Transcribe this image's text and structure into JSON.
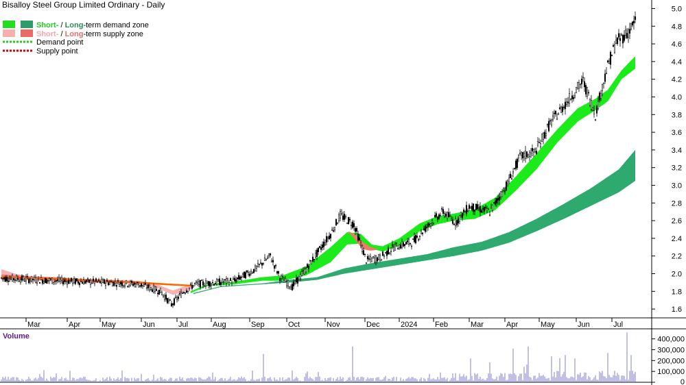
{
  "chart_data": {
    "type": "candlestick",
    "title": "Bisalloy Steel Group Limited Ordinary - Daily",
    "legend": {
      "demand_zone": {
        "short": "Short-",
        "sep": " / ",
        "long": "Long",
        "rest": "-term demand zone"
      },
      "supply_zone": {
        "short": "Short-",
        "sep": " / ",
        "long": "Long",
        "rest": "-term supply zone"
      },
      "demand_point": "Demand point",
      "supply_point": "Supply point"
    },
    "legend_placement": "top-left",
    "price_axis": {
      "ticks": [
        "1.6",
        "1.8",
        "2.0",
        "2.2",
        "2.4",
        "2.6",
        "2.8",
        "3.0",
        "3.2",
        "3.4",
        "3.6",
        "3.8",
        "4.0",
        "4.2",
        "4.4",
        "4.6",
        "4.8",
        "5.0"
      ],
      "range": [
        1.5,
        5.05
      ]
    },
    "volume_axis": {
      "label": "Volume",
      "ticks": [
        "0",
        "100,000",
        "200,000",
        "300,000",
        "400,000"
      ],
      "range": [
        0,
        480000
      ]
    },
    "x_axis": {
      "labels": [
        "Mar",
        "Apr",
        "May",
        "Jun",
        "Jul",
        "Aug",
        "Sep",
        "Oct",
        "Nov",
        "Dec",
        "2024",
        "Feb",
        "Mar",
        "Apr",
        "May",
        "Jun",
        "Jul"
      ]
    },
    "grid": false,
    "price_keypoints": [
      [
        0,
        1.95
      ],
      [
        40,
        1.92
      ],
      [
        80,
        1.9
      ],
      [
        100,
        1.88
      ],
      [
        116,
        1.8
      ],
      [
        124,
        1.65
      ],
      [
        133,
        1.8
      ],
      [
        141,
        1.88
      ],
      [
        170,
        1.92
      ],
      [
        185,
        2.05
      ],
      [
        196,
        2.2
      ],
      [
        203,
        1.96
      ],
      [
        212,
        1.85
      ],
      [
        222,
        2.05
      ],
      [
        240,
        2.45
      ],
      [
        247,
        2.66
      ],
      [
        257,
        2.56
      ],
      [
        266,
        2.15
      ],
      [
        276,
        2.18
      ],
      [
        286,
        2.3
      ],
      [
        300,
        2.36
      ],
      [
        313,
        2.58
      ],
      [
        322,
        2.7
      ],
      [
        331,
        2.58
      ],
      [
        341,
        2.76
      ],
      [
        356,
        2.7
      ],
      [
        369,
        3.02
      ],
      [
        378,
        3.32
      ],
      [
        389,
        3.38
      ],
      [
        400,
        3.7
      ],
      [
        415,
        4.0
      ],
      [
        424,
        4.18
      ],
      [
        433,
        3.8
      ],
      [
        441,
        4.3
      ],
      [
        448,
        4.62
      ],
      [
        456,
        4.72
      ],
      [
        462,
        4.85
      ]
    ],
    "short_demand_zone_keypoints": [
      [
        138,
        1.78,
        1.8
      ],
      [
        150,
        1.86,
        1.88
      ],
      [
        170,
        1.88,
        1.91
      ],
      [
        190,
        1.92,
        1.96
      ],
      [
        205,
        1.92,
        1.98
      ],
      [
        222,
        1.98,
        2.08
      ],
      [
        240,
        2.13,
        2.3
      ],
      [
        252,
        2.33,
        2.47
      ],
      [
        262,
        2.34,
        2.45
      ],
      [
        270,
        2.28,
        2.33
      ],
      [
        278,
        2.25,
        2.31
      ],
      [
        290,
        2.32,
        2.4
      ],
      [
        305,
        2.48,
        2.57
      ],
      [
        318,
        2.56,
        2.65
      ],
      [
        330,
        2.6,
        2.68
      ],
      [
        345,
        2.62,
        2.73
      ],
      [
        360,
        2.72,
        2.86
      ],
      [
        375,
        2.94,
        3.1
      ],
      [
        390,
        3.18,
        3.36
      ],
      [
        405,
        3.48,
        3.63
      ],
      [
        420,
        3.72,
        3.87
      ],
      [
        433,
        3.85,
        3.98
      ],
      [
        442,
        3.95,
        4.08
      ],
      [
        452,
        4.2,
        4.3
      ],
      [
        462,
        4.32,
        4.46
      ]
    ],
    "long_demand_zone_keypoints": [
      [
        140,
        1.77,
        1.78
      ],
      [
        160,
        1.85,
        1.86
      ],
      [
        190,
        1.88,
        1.89
      ],
      [
        210,
        1.9,
        1.93
      ],
      [
        230,
        1.93,
        1.96
      ],
      [
        250,
        2.0,
        2.06
      ],
      [
        270,
        2.05,
        2.12
      ],
      [
        290,
        2.1,
        2.17
      ],
      [
        310,
        2.15,
        2.22
      ],
      [
        330,
        2.2,
        2.3
      ],
      [
        350,
        2.26,
        2.36
      ],
      [
        370,
        2.35,
        2.47
      ],
      [
        390,
        2.48,
        2.62
      ],
      [
        410,
        2.62,
        2.79
      ],
      [
        430,
        2.77,
        2.97
      ],
      [
        450,
        2.92,
        3.18
      ],
      [
        462,
        3.05,
        3.4
      ]
    ],
    "short_supply_zone_keypoints": [
      [
        0,
        1.97,
        2.05
      ],
      [
        10,
        1.94,
        2.0
      ],
      [
        20,
        1.93,
        1.97
      ],
      [
        40,
        1.91,
        1.95
      ],
      [
        60,
        1.9,
        1.94
      ],
      [
        80,
        1.89,
        1.93
      ],
      [
        100,
        1.88,
        1.92
      ],
      [
        115,
        1.83,
        1.87
      ],
      [
        125,
        1.76,
        1.81
      ],
      [
        134,
        1.8,
        1.86
      ],
      [
        140,
        1.84,
        1.87
      ]
    ],
    "long_supply_zone_keypoints": [
      [
        0,
        1.93,
        1.99
      ],
      [
        20,
        1.93,
        1.97
      ],
      [
        40,
        1.92,
        1.96
      ],
      [
        60,
        1.91,
        1.94
      ],
      [
        80,
        1.9,
        1.93
      ],
      [
        100,
        1.89,
        1.91
      ],
      [
        120,
        1.87,
        1.89
      ],
      [
        138,
        1.86,
        1.87
      ]
    ],
    "late_supply_zone_keypoints": [
      [
        253,
        2.47,
        2.48
      ],
      [
        258,
        2.38,
        2.44
      ],
      [
        263,
        2.28,
        2.36
      ],
      [
        269,
        2.26,
        2.3
      ],
      [
        274,
        2.27,
        2.28
      ]
    ],
    "volume_highlights": [
      [
        191,
        260000
      ],
      [
        256,
        330000
      ],
      [
        342,
        220000
      ],
      [
        373,
        310000
      ],
      [
        384,
        330000
      ],
      [
        418,
        220000
      ],
      [
        442,
        270000
      ],
      [
        456,
        460000
      ],
      [
        459,
        250000
      ]
    ],
    "colors": {
      "background": "#ffffff",
      "candle": "#000000",
      "short_demand": "#1bea1b",
      "long_demand": "#2eaa6e",
      "short_supply": "#f5b3b3",
      "long_supply": "#f07a67",
      "supply_line": "#ff6a00",
      "volume_bar": "#8080c8",
      "title_text": "#000000",
      "volume_label": "#5a1a8a",
      "legend_short_demand": "#22cc22",
      "legend_long_demand": "#2e8b57",
      "legend_short_supply": "#f4a7a7",
      "legend_long_supply": "#e86b6b",
      "demand_point": "#22cc22",
      "supply_point": "#cc0000"
    }
  }
}
